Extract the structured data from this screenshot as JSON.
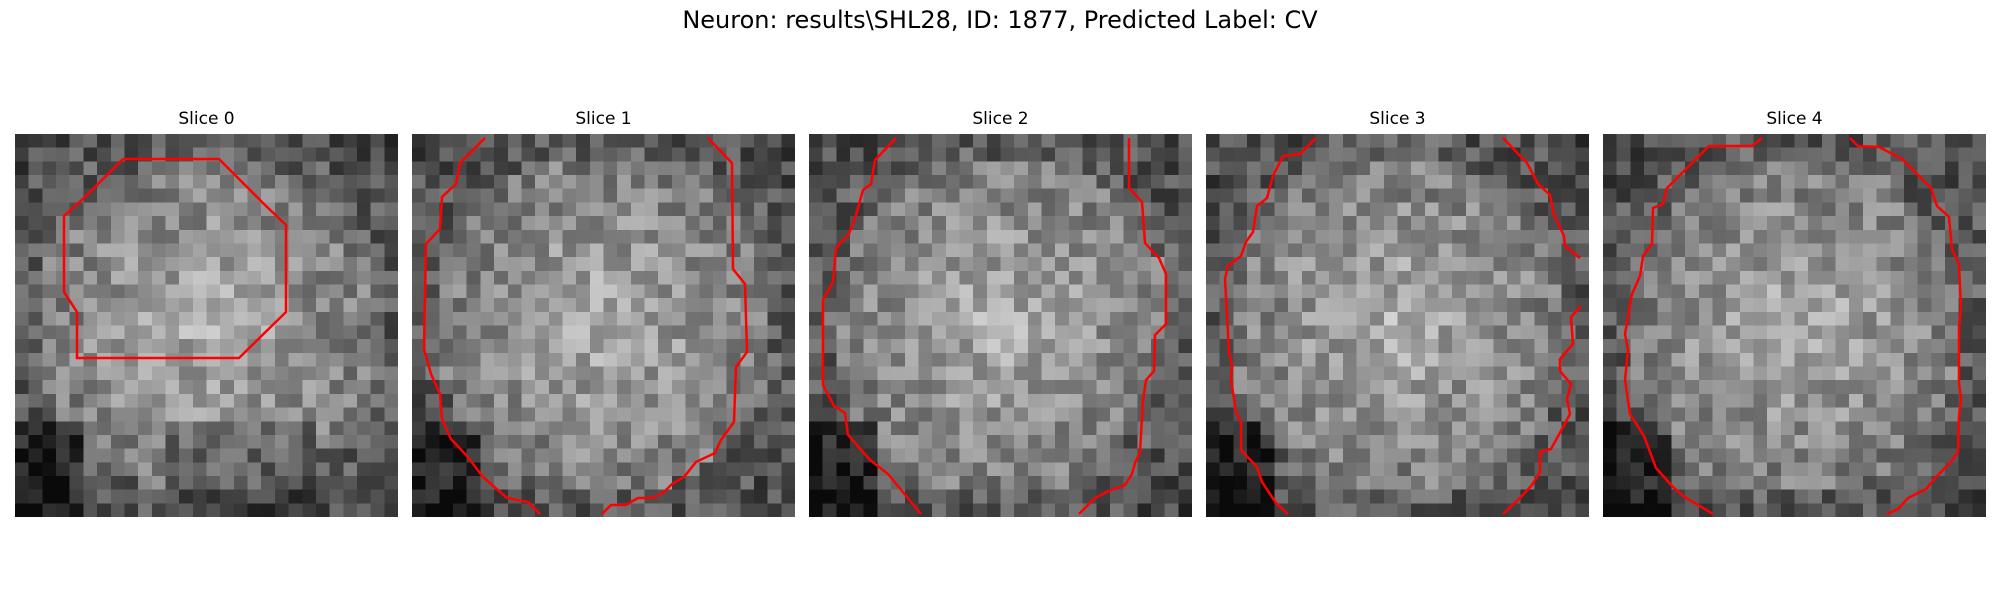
{
  "figure": {
    "title": "Neuron: results\\SHL28, ID: 1877, Predicted Label: CV"
  },
  "colors": {
    "contour": "#ff0000",
    "background": "#ffffff"
  },
  "panels": [
    {
      "label": "Slice 0",
      "seed": 11
    },
    {
      "label": "Slice 1",
      "seed": 23
    },
    {
      "label": "Slice 2",
      "seed": 37
    },
    {
      "label": "Slice 3",
      "seed": 41
    },
    {
      "label": "Slice 4",
      "seed": 59
    }
  ]
}
